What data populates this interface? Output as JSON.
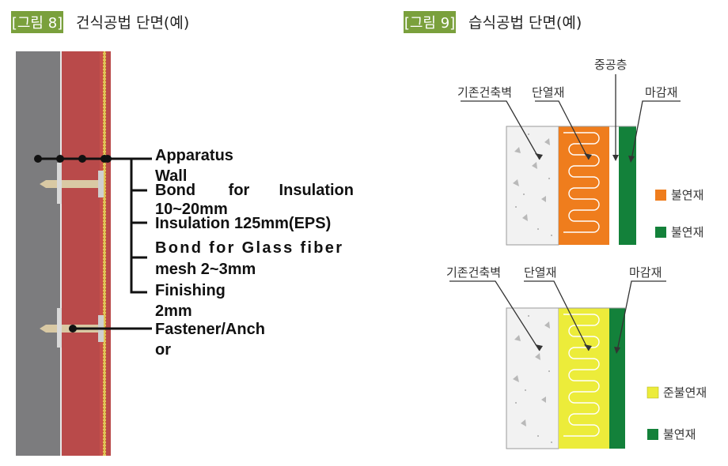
{
  "figure8": {
    "tag": "[그림 8]",
    "title": "건식공법 단면(예)",
    "labels": {
      "apparatus_1": "Apparatus",
      "apparatus_2": "Wall",
      "bond_word1": "Bond",
      "bond_word2": "for",
      "bond_word3": "Insulation",
      "bond_2": "10~20mm",
      "insulation": "Insulation 125mm(EPS)",
      "glass_1": "Bond for Glass fiber",
      "glass_2": "mesh 2~3mm",
      "finishing_1": "Finishing",
      "finishing_2": "2mm",
      "fastener_1": "Fastener/Anch",
      "fastener_2": "or"
    }
  },
  "figure9": {
    "tag": "[그림 9]",
    "title": "습식공법 단면(예)",
    "top": {
      "label_wall": "기존건축벽",
      "label_insulation": "단열재",
      "label_airgap": "중공층",
      "label_finish": "마감재",
      "legend": [
        "불연재",
        "불연재"
      ]
    },
    "bottom": {
      "label_wall": "기존건축벽",
      "label_insulation": "단열재",
      "label_finish": "마감재",
      "legend": [
        "준불연재",
        "불연재"
      ]
    }
  },
  "colors": {
    "tag_bg": "#7aa03c",
    "wall_gray": "#7c7c7e",
    "insulation_red": "#b94a4a",
    "orange": "#ef7d1d",
    "yellow": "#ecec3a",
    "green": "#13813a",
    "concrete": "#f2f2f2"
  }
}
